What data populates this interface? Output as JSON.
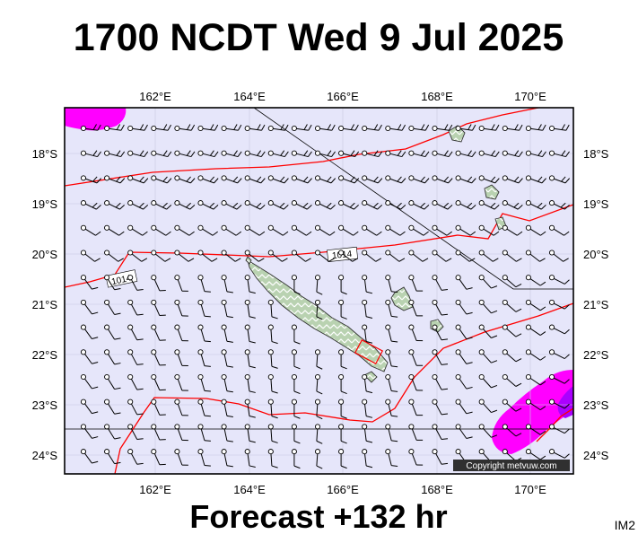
{
  "header": {
    "title": "1700 NCDT Wed 9 Jul 2025"
  },
  "footer": {
    "forecast_label": "Forecast +132 hr",
    "image_id": "IM2",
    "copyright": "Copyright metvuw.com"
  },
  "map": {
    "lon_labels": [
      "162°E",
      "164°E",
      "166°E",
      "168°E",
      "170°E"
    ],
    "lat_labels": [
      "18°S",
      "19°S",
      "20°S",
      "21°S",
      "22°S",
      "23°S",
      "24°S"
    ],
    "isobar_labels": [
      "1014",
      "1014"
    ],
    "colors": {
      "ocean": "#e6e6fa",
      "isobar": "#ff0000",
      "rain": "#ff00ff",
      "rain_heavy": "#aa00ff",
      "land": "#b8d0b0",
      "land_outline": "#333333",
      "frame": "#000000"
    }
  }
}
